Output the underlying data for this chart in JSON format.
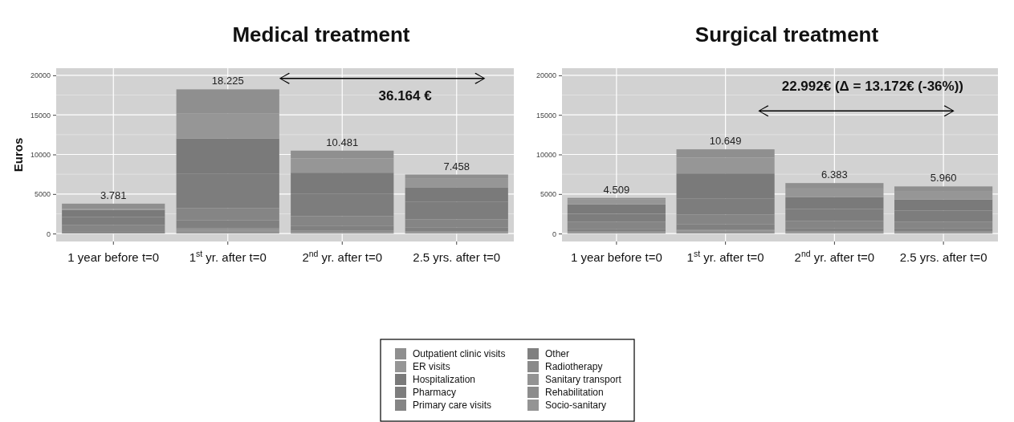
{
  "chart_data": [
    {
      "type": "bar",
      "title": "Medical treatment",
      "ylabel": "Euros",
      "stacked": true,
      "grid": true,
      "legend": "bottom",
      "categories": [
        "1 year before t=0",
        "1$^{st}$ yr. after t=0",
        "2$^{nd}$ yr. after t=0",
        "2.5 yrs. after t=0"
      ],
      "ylim": [
        -1000,
        20900
      ],
      "yticks": [
        0,
        5000,
        10000,
        15000,
        20000
      ],
      "series": [
        {
          "name": "Socio-sanitary",
          "color": "#949494",
          "values": [
            0,
            100,
            0,
            0
          ]
        },
        {
          "name": "Rehabilitation",
          "color": "#8c8c8c",
          "values": [
            100,
            200,
            100,
            100
          ]
        },
        {
          "name": "Sanitary transport",
          "color": "#939393",
          "values": [
            0,
            200,
            100,
            100
          ]
        },
        {
          "name": "Radiotherapy",
          "color": "#8a8a8a",
          "values": [
            0,
            200,
            200,
            100
          ]
        },
        {
          "name": "Other",
          "color": "#808080",
          "values": [
            200,
            1000,
            600,
            500
          ]
        },
        {
          "name": "Primary care visits",
          "color": "#858585",
          "values": [
            800,
            1500,
            1200,
            1000
          ]
        },
        {
          "name": "Pharmacy",
          "color": "#7d7d7d",
          "values": [
            1000,
            4400,
            2800,
            2200
          ]
        },
        {
          "name": "Hospitalization",
          "color": "#7a7a7a",
          "values": [
            900,
            4400,
            2700,
            1800
          ]
        },
        {
          "name": "ER visits",
          "color": "#969696",
          "values": [
            100,
            3200,
            1800,
            1200
          ]
        },
        {
          "name": "Outpatient clinic visits",
          "color": "#8f8f8f",
          "values": [
            681,
            3025,
            981,
            458
          ]
        }
      ],
      "annotations": [
        "36.164 €",
        {
          "text": "3.781",
          "x": "1 year before t=0",
          "y": 3781
        },
        {
          "text": "18.225",
          "x": "1$^{st}$ yr. after t=0",
          "y": 18225
        },
        {
          "text": "10.481",
          "x": "2$^{nd}$ yr. after t=0",
          "y": 10481
        },
        {
          "text": "7.458",
          "x": "2.5 yrs. after t=0",
          "y": 7458
        }
      ]
    },
    {
      "type": "bar",
      "title": "Surgical treatment",
      "stacked": true,
      "grid": true,
      "categories": [
        "1 year before t=0",
        "1$^{st}$ yr. after t=0",
        "2$^{nd}$ yr. after t=0",
        "2.5 yrs. after t=0"
      ],
      "ylim": [
        -1000,
        20900
      ],
      "yticks": [
        0,
        5000,
        10000,
        15000,
        20000
      ],
      "series": [
        {
          "color": "#949494",
          "values": [
            0,
            100,
            0,
            0
          ]
        },
        {
          "color": "#8c8c8c",
          "values": [
            100,
            200,
            100,
            100
          ]
        },
        {
          "color": "#939393",
          "values": [
            100,
            100,
            100,
            100
          ]
        },
        {
          "color": "#8a8a8a",
          "values": [
            100,
            100,
            100,
            100
          ]
        },
        {
          "color": "#808080",
          "values": [
            300,
            700,
            400,
            400
          ]
        },
        {
          "color": "#858585",
          "values": [
            900,
            1200,
            900,
            800
          ]
        },
        {
          "color": "#7d7d7d",
          "values": [
            1000,
            2000,
            1500,
            1400
          ]
        },
        {
          "color": "#7a7a7a",
          "values": [
            1200,
            3200,
            1500,
            1400
          ]
        },
        {
          "color": "#969696",
          "values": [
            600,
            2000,
            1100,
            1000
          ]
        },
        {
          "color": "#8f8f8f",
          "values": [
            209,
            1049,
            683,
            660
          ]
        }
      ],
      "annotations": [
        "22.992€ (Δ = 13.172€ (-36%))",
        {
          "text": "4.509",
          "x": "1 year before t=0",
          "y": 4509
        },
        {
          "text": "10.649",
          "x": "1$^{st}$ yr. after t=0",
          "y": 10649
        },
        {
          "text": "6.383",
          "x": "2$^{nd}$ yr. after t=0",
          "y": 6383
        },
        {
          "text": "5.960",
          "x": "2.5 yrs. after t=0",
          "y": 5960
        }
      ]
    }
  ]
}
